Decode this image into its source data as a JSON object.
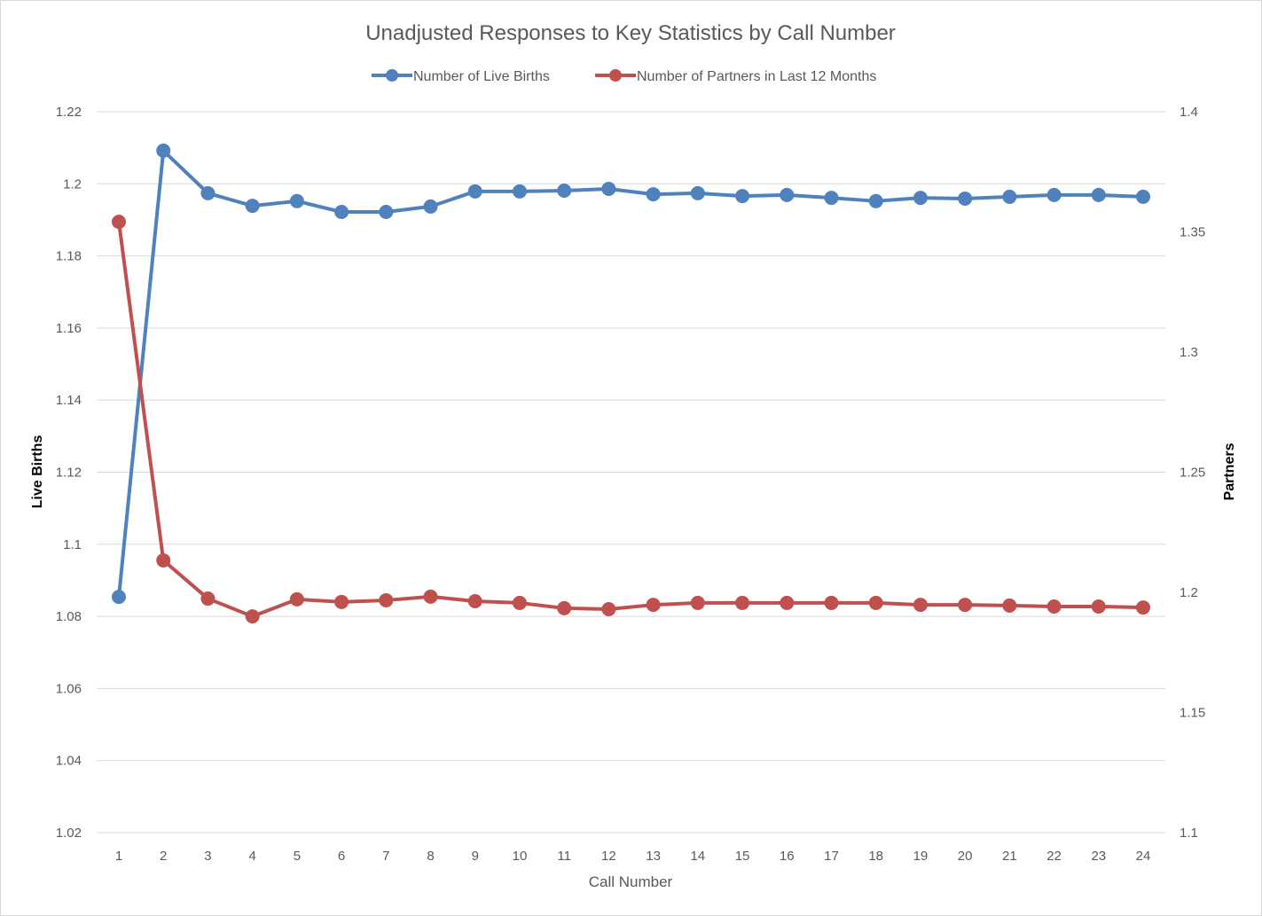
{
  "chart_data": {
    "type": "line",
    "title": "Unadjusted Responses to Key Statistics by Call Number",
    "xlabel": "Call Number",
    "ylabel": "Live Births",
    "y2label": "Partners",
    "x": [
      1,
      2,
      3,
      4,
      5,
      6,
      7,
      8,
      9,
      10,
      11,
      12,
      13,
      14,
      15,
      16,
      17,
      18,
      19,
      20,
      21,
      22,
      23,
      24
    ],
    "ylim": [
      1.02,
      1.22
    ],
    "yticks": [
      "1.02",
      "1.04",
      "1.06",
      "1.08",
      "1.1",
      "1.12",
      "1.14",
      "1.16",
      "1.18",
      "1.2",
      "1.22"
    ],
    "y2lim": [
      1.1,
      1.4
    ],
    "y2ticks": [
      "1.1",
      "1.15",
      "1.2",
      "1.25",
      "1.3",
      "1.35",
      "1.4"
    ],
    "grid": true,
    "legend_position": "top",
    "series": [
      {
        "name": "Number of Live Births",
        "axis": "left",
        "color": "#4f81bd",
        "values": [
          1.0854,
          1.2092,
          1.1974,
          1.1939,
          1.1952,
          1.1922,
          1.1922,
          1.1937,
          1.1979,
          1.1979,
          1.1981,
          1.1986,
          1.1971,
          1.1974,
          1.1966,
          1.1969,
          1.1961,
          1.1952,
          1.1961,
          1.1959,
          1.1964,
          1.1969,
          1.1969,
          1.1964
        ]
      },
      {
        "name": "Number of Partners in Last 12 Months",
        "axis": "right",
        "color": "#c0504d",
        "values": [
          1.3542,
          1.2133,
          1.1974,
          1.19,
          1.1971,
          1.196,
          1.1967,
          1.1982,
          1.1963,
          1.1956,
          1.1934,
          1.193,
          1.1948,
          1.1956,
          1.1956,
          1.1956,
          1.1956,
          1.1956,
          1.1948,
          1.1948,
          1.1945,
          1.1941,
          1.1941,
          1.1937
        ]
      }
    ]
  }
}
